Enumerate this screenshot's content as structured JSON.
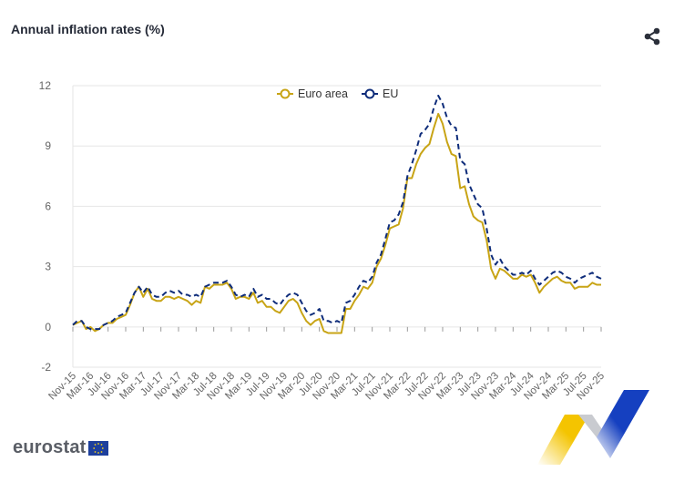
{
  "header": {
    "title": "Annual inflation rates (%)"
  },
  "icons": {
    "share": "share-icon",
    "flag": "eu-flag-icon"
  },
  "footer": {
    "logo_text": "eurostat"
  },
  "colors": {
    "euro_area": "#c8a415",
    "eu": "#0e2c7a",
    "grid": "#e6e6e6",
    "axis_text": "#666666"
  },
  "chart_data": {
    "type": "line",
    "title": "Annual inflation rates (%)",
    "xlabel": "",
    "ylabel": "",
    "ylim": [
      -2,
      12
    ],
    "yticks": [
      -2,
      0,
      3,
      6,
      9,
      12
    ],
    "grid": true,
    "legend_position": "top-center",
    "tick_labels": [
      "Nov-15",
      "Mar-16",
      "Jul-16",
      "Nov-16",
      "Mar-17",
      "Jul-17",
      "Nov-17",
      "Mar-18",
      "Jul-18",
      "Nov-18",
      "Mar-19",
      "Jul-19",
      "Nov-19",
      "Mar-20",
      "Jul-20",
      "Nov-20",
      "Mar-21",
      "Jul-21",
      "Nov-21",
      "Mar-22",
      "Jul-22",
      "Nov-22",
      "Mar-23",
      "Jul-23",
      "Nov-23",
      "Mar-24",
      "Jul-24",
      "Nov-24",
      "Mar-25",
      "Jul-25",
      "Nov-25"
    ],
    "x_start": "Nov-15",
    "x_end": "Nov-25",
    "series": [
      {
        "name": "Euro area",
        "values": [
          0.1,
          0.2,
          0.3,
          -0.1,
          0.0,
          -0.2,
          -0.1,
          0.1,
          0.2,
          0.2,
          0.4,
          0.5,
          0.6,
          1.1,
          1.7,
          2.0,
          1.5,
          1.9,
          1.4,
          1.3,
          1.3,
          1.5,
          1.5,
          1.4,
          1.5,
          1.4,
          1.3,
          1.1,
          1.3,
          1.2,
          2.0,
          1.9,
          2.1,
          2.1,
          2.1,
          2.2,
          1.9,
          1.4,
          1.5,
          1.5,
          1.4,
          1.7,
          1.2,
          1.3,
          1.0,
          1.0,
          0.8,
          0.7,
          1.0,
          1.3,
          1.4,
          1.2,
          0.7,
          0.3,
          0.1,
          0.3,
          0.4,
          -0.2,
          -0.3,
          -0.3,
          -0.3,
          -0.3,
          0.9,
          0.9,
          1.3,
          1.6,
          2.0,
          1.9,
          2.2,
          3.0,
          3.4,
          4.1,
          4.9,
          5.0,
          5.1,
          5.9,
          7.4,
          7.4,
          8.1,
          8.6,
          8.9,
          9.1,
          9.9,
          10.6,
          10.1,
          9.2,
          8.6,
          8.5,
          6.9,
          7.0,
          6.1,
          5.5,
          5.3,
          5.2,
          4.3,
          2.9,
          2.4,
          2.9,
          2.8,
          2.6,
          2.4,
          2.4,
          2.6,
          2.5,
          2.6,
          2.2,
          1.7,
          2.0,
          2.2,
          2.4,
          2.5,
          2.3,
          2.2,
          2.2,
          1.9,
          2.0,
          2.0,
          2.0,
          2.2,
          2.1,
          2.1
        ]
      },
      {
        "name": "EU",
        "values": [
          0.1,
          0.3,
          0.3,
          0.0,
          -0.1,
          -0.1,
          -0.1,
          0.1,
          0.2,
          0.3,
          0.5,
          0.6,
          0.7,
          1.2,
          1.7,
          2.0,
          1.7,
          2.0,
          1.6,
          1.5,
          1.5,
          1.7,
          1.8,
          1.7,
          1.8,
          1.6,
          1.6,
          1.5,
          1.6,
          1.5,
          2.0,
          2.1,
          2.2,
          2.2,
          2.2,
          2.3,
          2.0,
          1.6,
          1.5,
          1.6,
          1.5,
          1.9,
          1.5,
          1.6,
          1.4,
          1.4,
          1.2,
          1.1,
          1.4,
          1.6,
          1.7,
          1.6,
          1.2,
          0.8,
          0.6,
          0.7,
          0.9,
          0.3,
          0.3,
          0.2,
          0.3,
          0.2,
          1.2,
          1.3,
          1.6,
          2.0,
          2.3,
          2.2,
          2.5,
          3.2,
          3.6,
          4.4,
          5.2,
          5.3,
          5.6,
          6.2,
          7.5,
          8.1,
          8.8,
          9.6,
          9.8,
          10.1,
          10.9,
          11.5,
          11.1,
          10.4,
          10.0,
          9.9,
          8.3,
          8.1,
          7.1,
          6.6,
          6.1,
          5.9,
          4.9,
          3.6,
          3.1,
          3.4,
          3.0,
          2.8,
          2.6,
          2.6,
          2.7,
          2.6,
          2.8,
          2.4,
          2.1,
          2.3,
          2.5,
          2.7,
          2.8,
          2.7,
          2.5,
          2.4,
          2.2,
          2.4,
          2.5,
          2.6,
          2.7,
          2.5,
          2.4
        ]
      }
    ]
  }
}
